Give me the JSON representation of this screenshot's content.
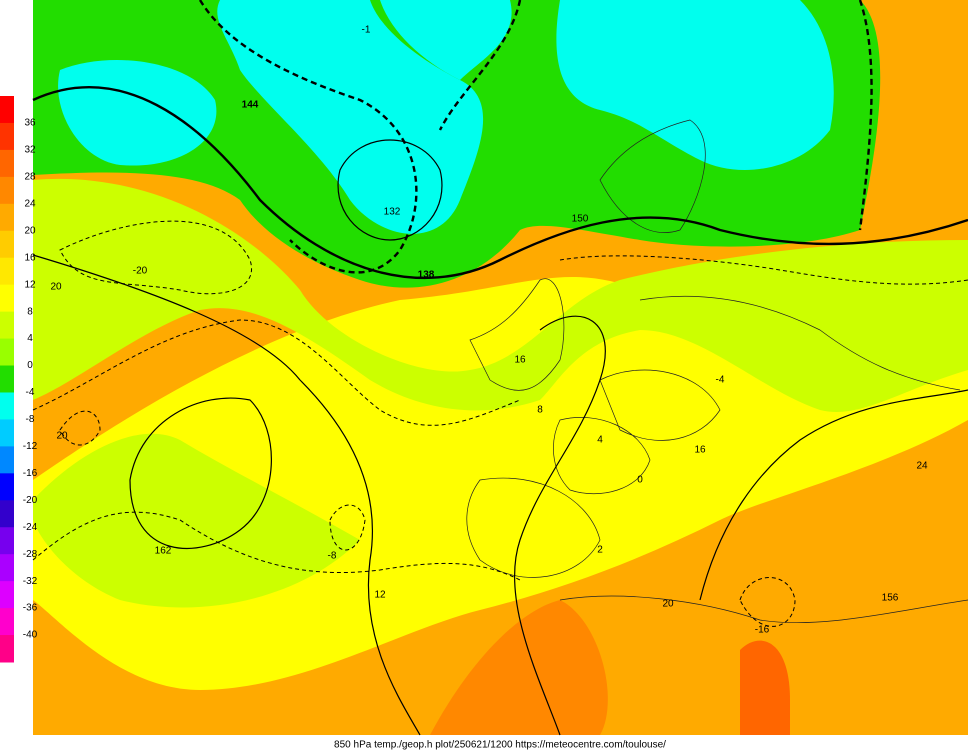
{
  "legend": {
    "ticks": [
      "36",
      "32",
      "28",
      "24",
      "20",
      "16",
      "12",
      "8",
      "4",
      "0",
      "-4",
      "-8",
      "-12",
      "-16",
      "-20",
      "-24",
      "-28",
      "-32",
      "-36",
      "-40"
    ],
    "colors": [
      "#ff0000",
      "#ff3300",
      "#ff6600",
      "#ff8800",
      "#ffaa00",
      "#ffcc00",
      "#ffe800",
      "#ffff00",
      "#ccff00",
      "#99ff00",
      "#22dd00",
      "#00ffee",
      "#00ccff",
      "#0088ff",
      "#0000ff",
      "#3300cc",
      "#7700ee",
      "#aa00ff",
      "#dd00ff",
      "#ff00cc",
      "#ff0088"
    ]
  },
  "map": {
    "contour_labels": [
      "144",
      "138",
      "132",
      "150",
      "156",
      "162",
      "20",
      "-20",
      "20",
      "12",
      "16",
      "-8",
      "20",
      "-16",
      "8",
      "-4",
      "0",
      "4",
      "-1",
      "2",
      "24",
      "16"
    ]
  },
  "footer": "850 hPa temp./geop.h plot/250621/1200 https://meteocentre.com/toulouse/"
}
